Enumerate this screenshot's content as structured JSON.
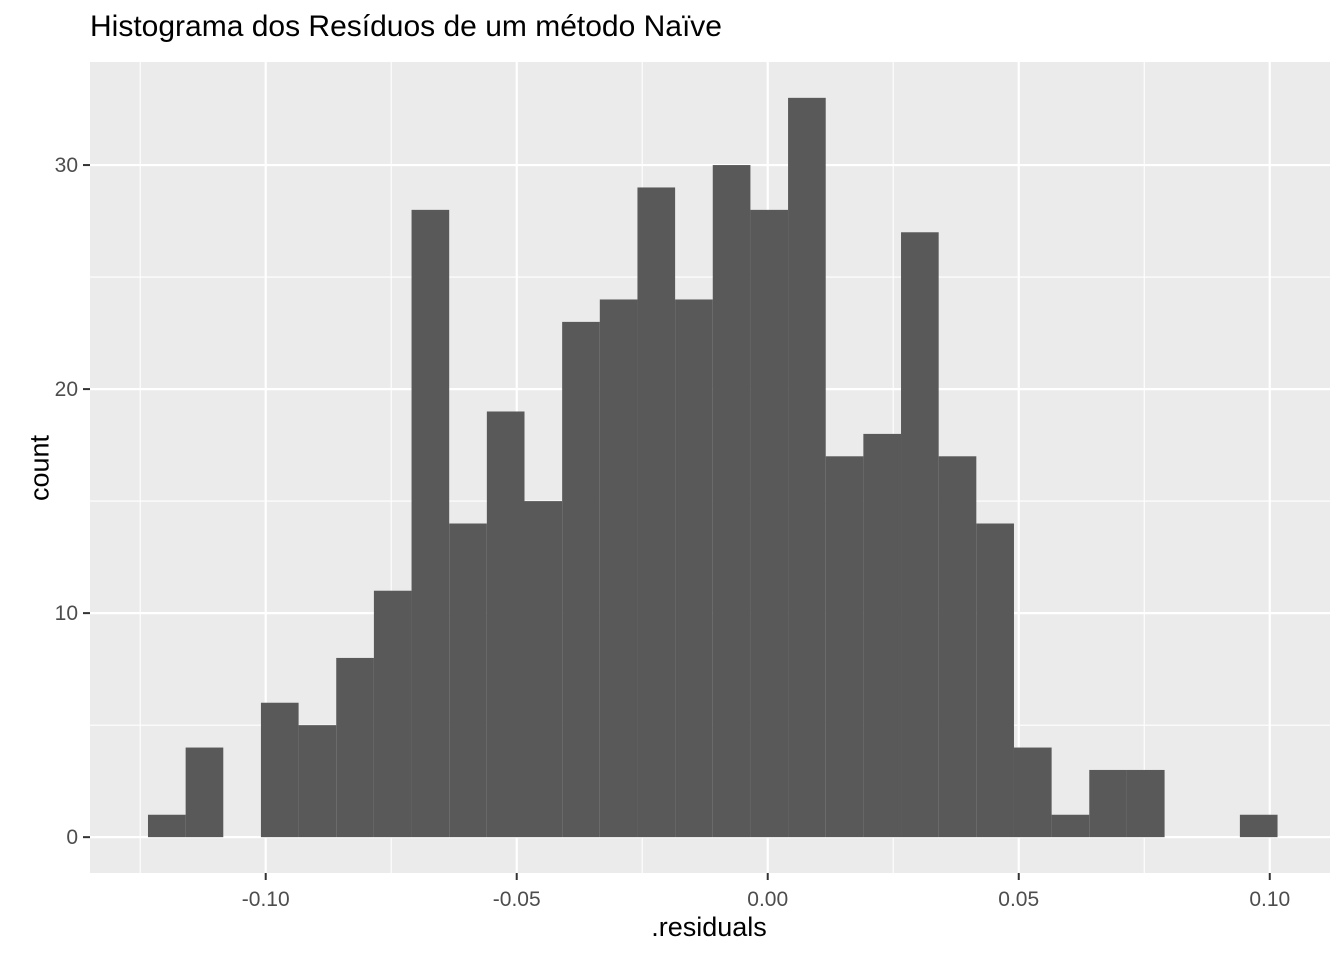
{
  "chart_data": {
    "type": "bar",
    "title": "Histograma dos Resíduos de um método Naïve",
    "xlabel": ".residuals",
    "ylabel": "count",
    "bin_width": 0.0075,
    "bin_centers": [
      -0.1197,
      -0.1122,
      -0.1047,
      -0.0972,
      -0.0897,
      -0.0822,
      -0.0747,
      -0.0672,
      -0.0597,
      -0.0522,
      -0.0447,
      -0.0372,
      -0.0297,
      -0.0222,
      -0.0147,
      -0.0072,
      0.0003,
      0.0078,
      0.0153,
      0.0228,
      0.0303,
      0.0378,
      0.0453,
      0.0528,
      0.0603,
      0.0678,
      0.0753,
      0.0828,
      0.0903,
      0.0978
    ],
    "values": [
      1,
      4,
      0,
      6,
      5,
      8,
      11,
      28,
      14,
      19,
      15,
      23,
      24,
      29,
      24,
      30,
      28,
      33,
      17,
      18,
      27,
      17,
      14,
      4,
      1,
      3,
      3,
      0,
      0,
      1
    ],
    "xlim": [
      -0.135,
      0.112
    ],
    "ylim": [
      -1.6,
      34.6
    ],
    "x_ticks": [
      -0.1,
      -0.05,
      0.0,
      0.05,
      0.1
    ],
    "x_tick_labels": [
      "-0.10",
      "-0.05",
      "0.00",
      "0.05",
      "0.10"
    ],
    "y_ticks": [
      0,
      10,
      20,
      30
    ],
    "y_tick_labels": [
      "0",
      "10",
      "20",
      "30"
    ],
    "grid": true,
    "colors": {
      "panel_background": "#EBEBEB",
      "grid_major": "#FFFFFF",
      "bar_fill": "#595959",
      "tick_text": "#4D4D4D",
      "tick_mark": "#333333"
    }
  }
}
